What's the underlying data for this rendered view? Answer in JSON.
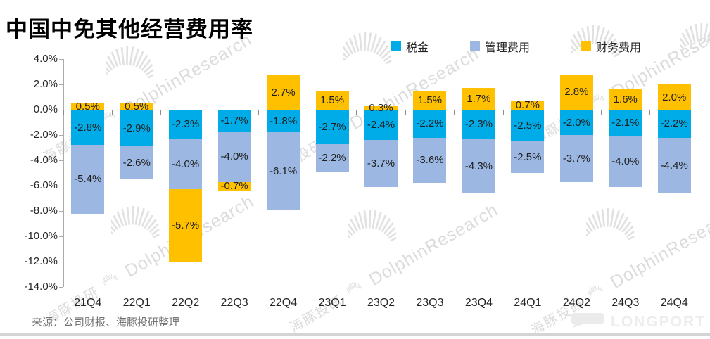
{
  "title": "中国中免其他经营费用率",
  "source": "来源：公司财报、海豚投研整理",
  "watermark": {
    "cn": "海豚投研",
    "en": "DolphinResearch"
  },
  "footer": {
    "brand": "LONGPORT"
  },
  "chart_data": {
    "type": "bar",
    "stacked": true,
    "title": "中国中免其他经营费用率",
    "categories": [
      "21Q4",
      "22Q1",
      "22Q2",
      "22Q3",
      "22Q4",
      "23Q1",
      "23Q2",
      "23Q3",
      "23Q4",
      "24Q1",
      "24Q2",
      "24Q3",
      "24Q4"
    ],
    "series": [
      {
        "name": "税金",
        "color": "#00ACE8",
        "values": [
          -2.8,
          -2.9,
          -2.3,
          -1.7,
          -1.8,
          -2.7,
          -2.4,
          -2.2,
          -2.3,
          -2.5,
          -2.0,
          -2.1,
          -2.2
        ]
      },
      {
        "name": "管理费用",
        "color": "#9CB8E2",
        "values": [
          -5.4,
          -2.6,
          -4.0,
          -4.0,
          -6.1,
          -2.2,
          -3.7,
          -3.6,
          -4.3,
          -2.5,
          -3.7,
          -4.0,
          -4.4
        ]
      },
      {
        "name": "财务费用",
        "color": "#FFC000",
        "values": [
          0.5,
          0.5,
          -5.7,
          -0.7,
          2.7,
          1.5,
          0.3,
          1.5,
          1.7,
          0.7,
          2.8,
          1.6,
          2.0
        ]
      }
    ],
    "ylim": [
      -14,
      4
    ],
    "ytick_step": 2,
    "ytick_labels": [
      "4.0%",
      "2.0%",
      "0.0%",
      "-2.0%",
      "-4.0%",
      "-6.0%",
      "-8.0%",
      "-10.0%",
      "-12.0%",
      "-14.0%"
    ],
    "value_suffix": "%",
    "legend_position": "top-right",
    "grid": false
  }
}
